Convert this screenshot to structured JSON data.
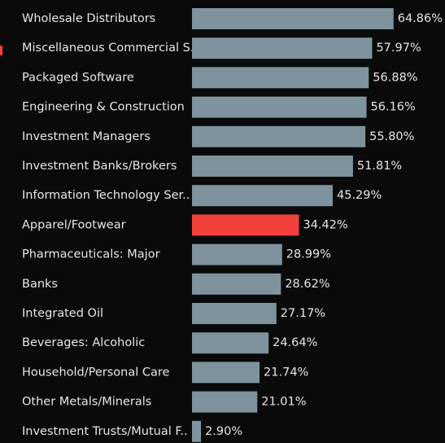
{
  "chart_data": {
    "type": "bar",
    "orientation": "horizontal",
    "categories": [
      "Wholesale Distributors",
      "Miscellaneous Commercial S..",
      "Packaged Software",
      "Engineering & Construction",
      "Investment Managers",
      "Investment Banks/Brokers",
      "Information Technology Ser..",
      "Apparel/Footwear",
      "Pharmaceuticals: Major",
      "Banks",
      "Integrated Oil",
      "Beverages: Alcoholic",
      "Household/Personal Care",
      "Other Metals/Minerals",
      "Investment Trusts/Mutual F.."
    ],
    "values": [
      64.86,
      57.97,
      56.88,
      56.16,
      55.8,
      51.81,
      45.29,
      34.42,
      28.99,
      28.62,
      27.17,
      24.64,
      21.74,
      21.01,
      2.9
    ],
    "value_labels": [
      "64.86%",
      "57.97%",
      "56.88%",
      "56.16%",
      "55.80%",
      "51.81%",
      "45.29%",
      "34.42%",
      "28.99%",
      "28.62%",
      "27.17%",
      "24.64%",
      "21.74%",
      "21.01%",
      "2.90%"
    ],
    "colors": [
      "#7f939e",
      "#7f939e",
      "#7f939e",
      "#7f939e",
      "#7f939e",
      "#7f939e",
      "#7f939e",
      "#f2413a",
      "#7f939e",
      "#7f939e",
      "#7f939e",
      "#7f939e",
      "#7f939e",
      "#7f939e",
      "#7f939e"
    ]
  }
}
